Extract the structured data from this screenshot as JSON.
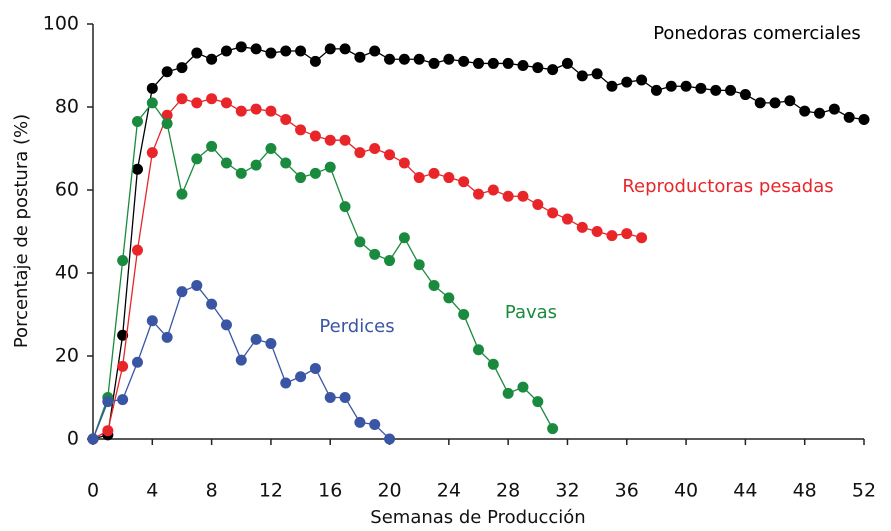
{
  "chart_data": {
    "type": "line",
    "x_label": "Semanas de Producción",
    "y_label": "Porcentaje de postura (%)",
    "xlim": [
      0,
      52
    ],
    "ylim": [
      0,
      100
    ],
    "xticks": [
      0,
      4,
      8,
      12,
      16,
      20,
      24,
      28,
      32,
      36,
      40,
      44,
      48,
      52
    ],
    "yticks": [
      0,
      20,
      40,
      60,
      80,
      100
    ],
    "series": [
      {
        "name": "Ponedoras comerciales",
        "color": "#000000",
        "x": [
          0,
          1,
          2,
          3,
          4,
          5,
          6,
          7,
          8,
          9,
          10,
          11,
          12,
          13,
          14,
          15,
          16,
          17,
          18,
          19,
          20,
          21,
          22,
          23,
          24,
          25,
          26,
          27,
          28,
          29,
          30,
          31,
          32,
          33,
          34,
          35,
          36,
          37,
          38,
          39,
          40,
          41,
          42,
          43,
          44,
          45,
          46,
          47,
          48,
          49,
          50,
          51,
          52
        ],
        "values": [
          0,
          1,
          25,
          65,
          84.5,
          88.5,
          89.5,
          93,
          91.5,
          93.5,
          94.5,
          94,
          93,
          93.5,
          93.5,
          91,
          94,
          94,
          92,
          93.5,
          91.5,
          91.5,
          91.5,
          90.5,
          91.5,
          91,
          90.5,
          90.5,
          90.5,
          90,
          89.5,
          89,
          90.5,
          87.5,
          88,
          85,
          86,
          86.5,
          84,
          85,
          85,
          84.5,
          84,
          84,
          83,
          81,
          81,
          81.5,
          79,
          78.5,
          79.5,
          77.5,
          77
        ]
      },
      {
        "name": "Reproductoras pesadas",
        "color": "#e8262a",
        "x": [
          0,
          1,
          2,
          3,
          4,
          5,
          6,
          7,
          8,
          9,
          10,
          11,
          12,
          13,
          14,
          15,
          16,
          17,
          18,
          19,
          20,
          21,
          22,
          23,
          24,
          25,
          26,
          27,
          28,
          29,
          30,
          31,
          32,
          33,
          34,
          35,
          36,
          37
        ],
        "values": [
          0,
          2,
          17.5,
          45.5,
          69,
          78,
          82,
          81,
          82,
          81,
          79,
          79.5,
          79,
          77,
          74.5,
          73,
          72,
          72,
          69,
          70,
          68.5,
          66.5,
          63,
          64,
          63,
          62,
          59,
          60,
          58.5,
          58.5,
          56.5,
          54.5,
          53,
          51,
          50,
          49,
          49.5,
          48.5
        ]
      },
      {
        "name": "Pavas",
        "color": "#1a8a3e",
        "x": [
          0,
          1,
          2,
          3,
          4,
          5,
          6,
          7,
          8,
          9,
          10,
          11,
          12,
          13,
          14,
          15,
          16,
          17,
          18,
          19,
          20,
          21,
          22,
          23,
          24,
          25,
          26,
          27,
          28,
          29,
          30,
          31
        ],
        "values": [
          0,
          10,
          43,
          76.5,
          81,
          76,
          59,
          67.5,
          70.5,
          66.5,
          64,
          66,
          70,
          66.5,
          63,
          64,
          65.5,
          56,
          47.5,
          44.5,
          43,
          48.5,
          42,
          37,
          34,
          30,
          21.5,
          18,
          11,
          12.5,
          9,
          2.5
        ]
      },
      {
        "name": "Perdices",
        "color": "#3a55a4",
        "x": [
          0,
          1,
          2,
          3,
          4,
          5,
          6,
          7,
          8,
          9,
          10,
          11,
          12,
          13,
          14,
          15,
          16,
          17,
          18,
          19,
          20
        ],
        "values": [
          0,
          9,
          9.5,
          18.5,
          28.5,
          24.5,
          35.5,
          37,
          32.5,
          27.5,
          19,
          24,
          23,
          13.5,
          15,
          17,
          10,
          10,
          4,
          3.5,
          0
        ]
      }
    ]
  }
}
